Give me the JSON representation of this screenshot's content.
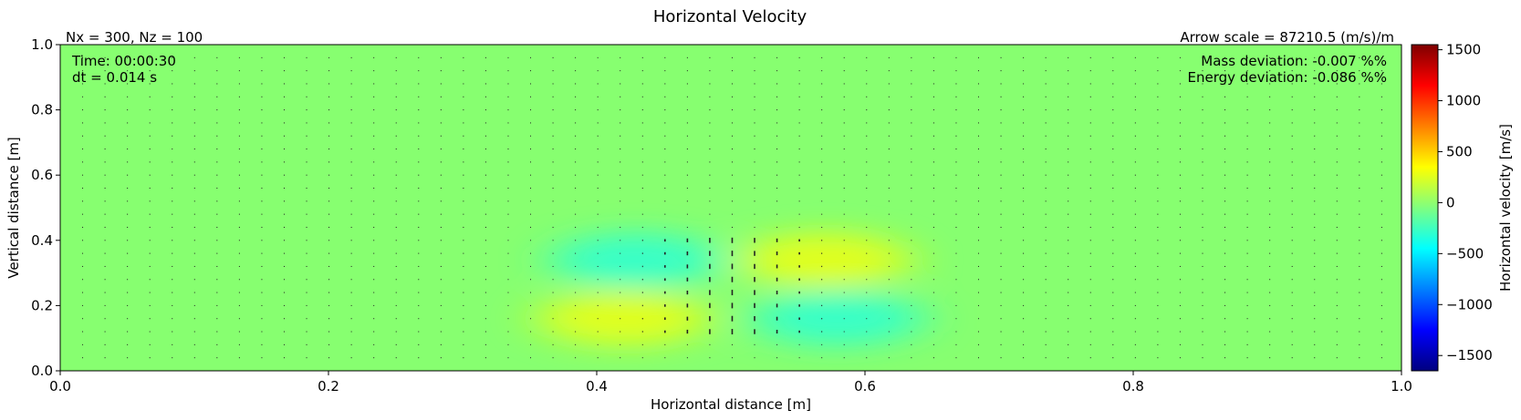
{
  "chart_data": {
    "type": "heatmap",
    "title": "Horizontal Velocity",
    "xlabel": "Horizontal distance [m]",
    "ylabel": "Vertical distance [m]",
    "xlim": [
      0.0,
      1.0
    ],
    "ylim": [
      0.0,
      1.0
    ],
    "xticks": [
      "0.0",
      "0.2",
      "0.4",
      "0.6",
      "0.8",
      "1.0"
    ],
    "yticks": [
      "0.0",
      "0.2",
      "0.4",
      "0.6",
      "0.8",
      "1.0"
    ],
    "grid_info": "Nx = 300, Nz = 100",
    "arrow_scale": "Arrow scale = 87210.5 (m/s)/m",
    "time_text": "Time: 00:00:30",
    "dt_text": "dt = 0.014 s",
    "mass_text": "Mass deviation: -0.007 %%",
    "energy_text": "Energy deviation: -0.086 %%",
    "colorbar": {
      "label": "Horizontal velocity [m/s]",
      "colormap": "jet",
      "range": [
        -1650,
        1550
      ],
      "ticks": [
        1500,
        1000,
        500,
        0,
        -500,
        -1000,
        -1500
      ],
      "tick_labels": [
        "1500",
        "1000",
        "500",
        "0",
        "−500",
        "−1000",
        "−1500"
      ]
    },
    "background_value": 0,
    "background_color": "#87ff70",
    "features": [
      {
        "name": "upper-left negative lobe",
        "x": 0.43,
        "y": 0.34,
        "value": -300
      },
      {
        "name": "upper-right positive lobe",
        "x": 0.57,
        "y": 0.34,
        "value": 280
      },
      {
        "name": "lower-left positive lobe",
        "x": 0.42,
        "y": 0.16,
        "value": 280
      },
      {
        "name": "lower-right negative lobe",
        "x": 0.58,
        "y": 0.16,
        "value": -300
      }
    ]
  }
}
